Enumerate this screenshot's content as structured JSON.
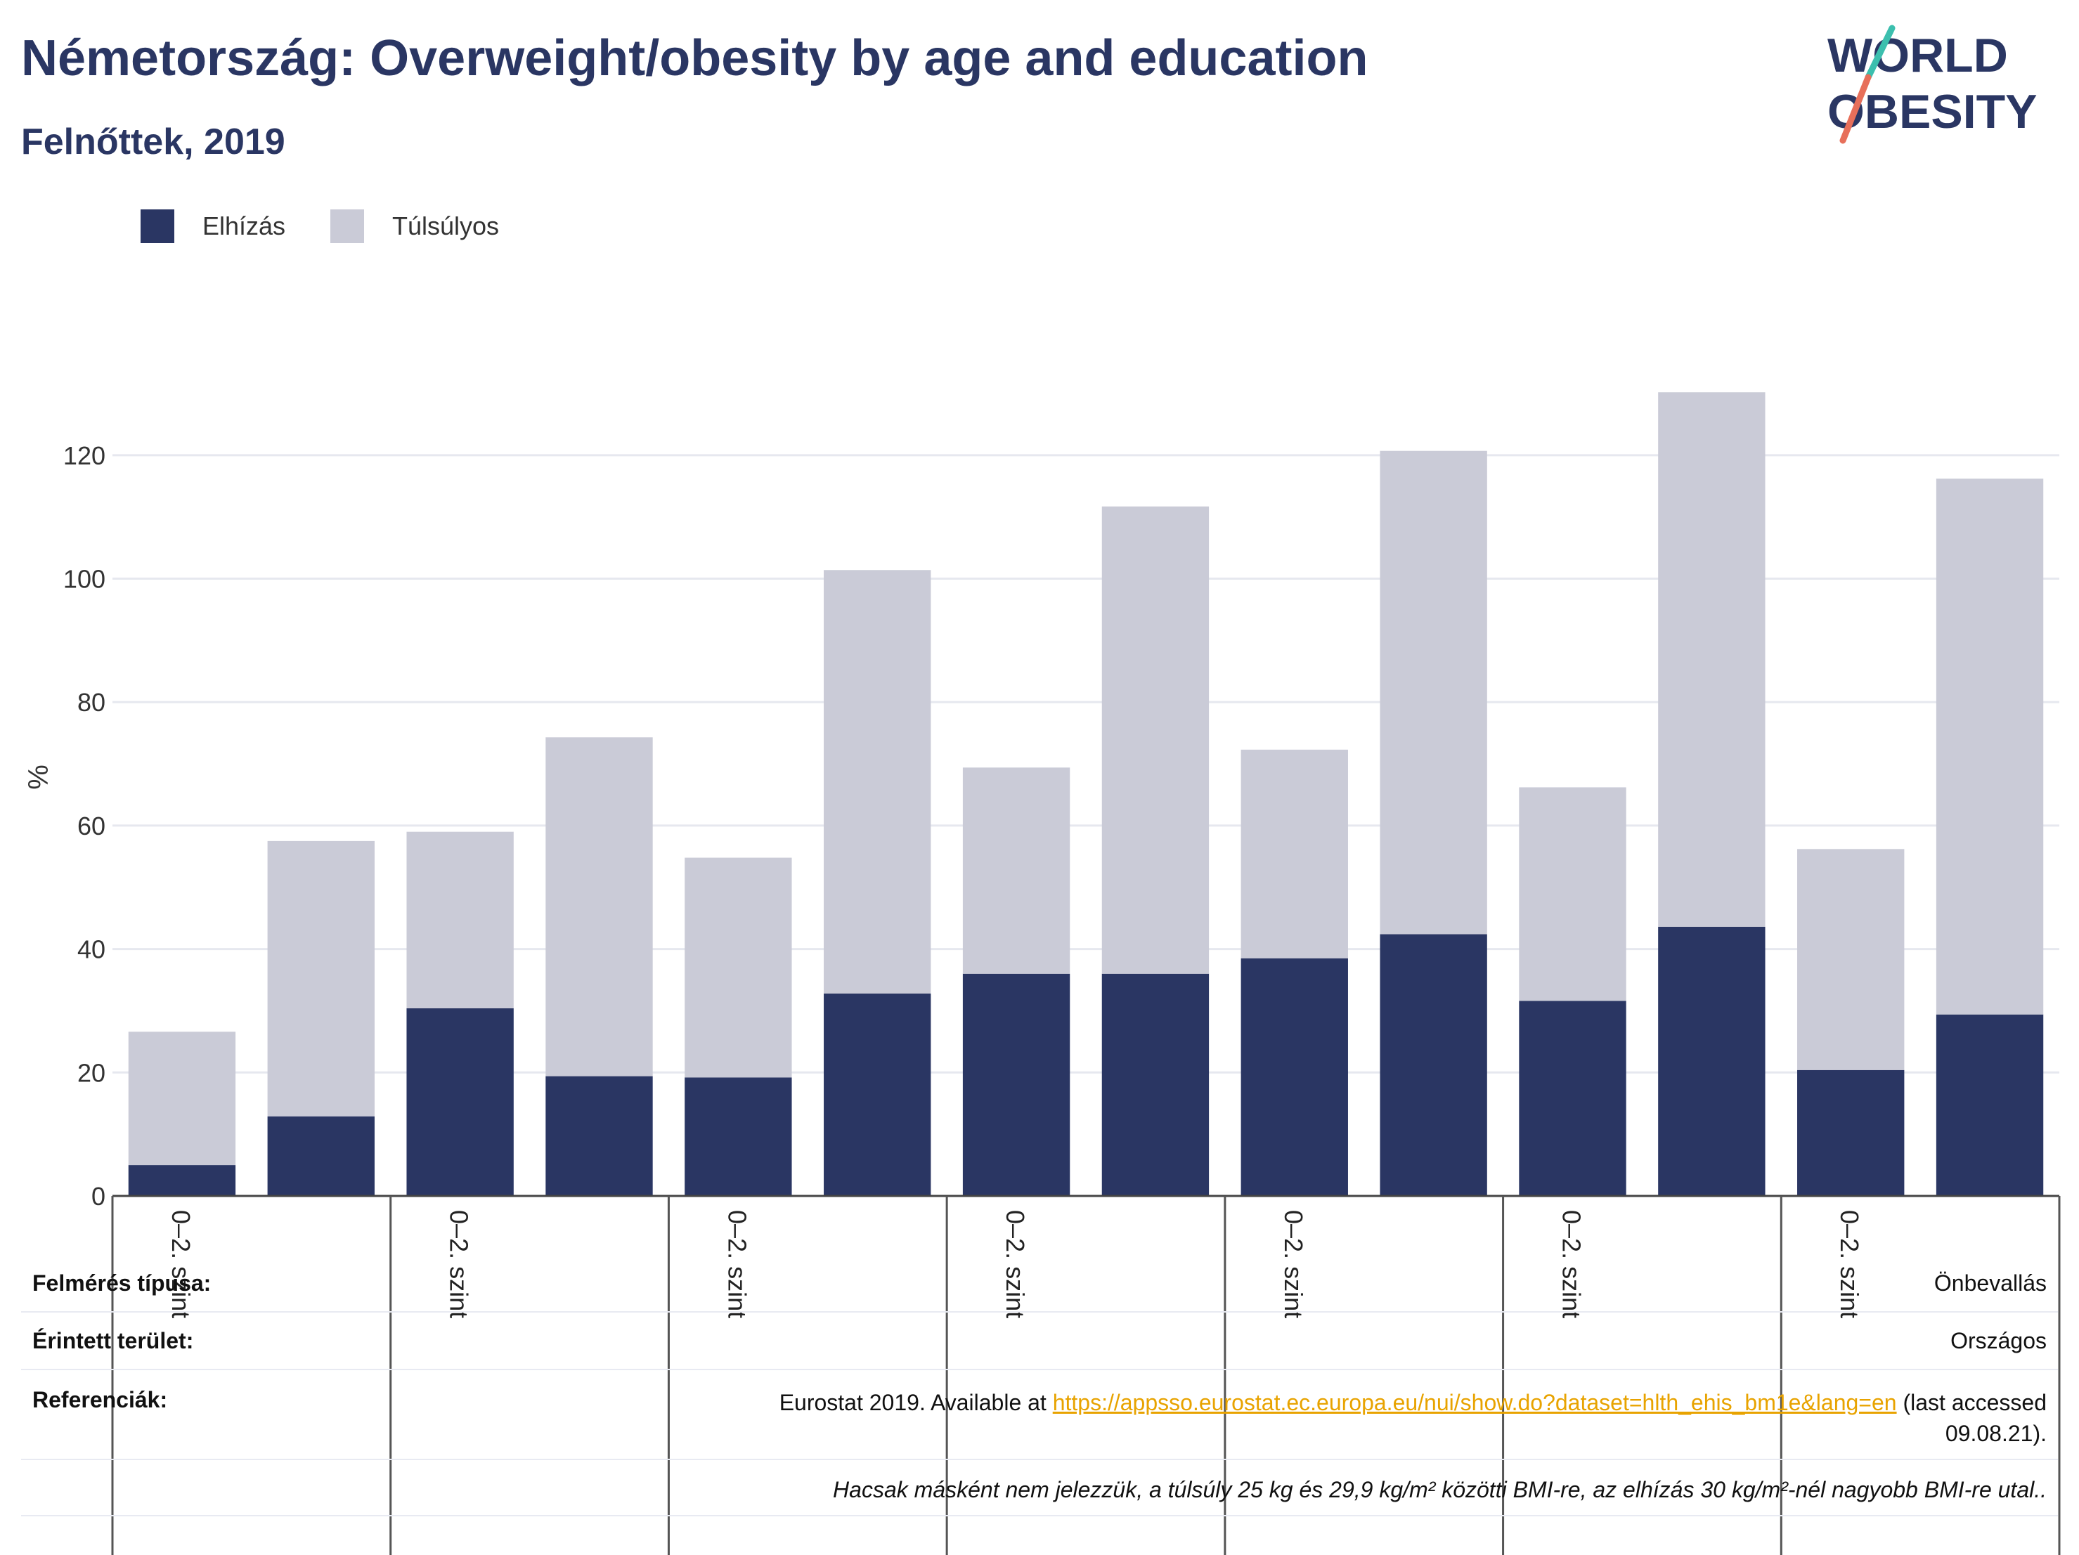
{
  "title": "Németország: Overweight/obesity by age and education",
  "subtitle": "Felnőttek, 2019",
  "logo": {
    "line1": "WORLD",
    "line2": "OBESITY"
  },
  "colors": {
    "obesity": "#2a3663",
    "overweight": "#cacbd7",
    "title": "#2a3663",
    "link": "#e8a300",
    "grid": "#e6e8ef"
  },
  "chart_data": {
    "type": "bar",
    "stacked": true,
    "ylabel": "%",
    "ylim": [
      0,
      130
    ],
    "yticks": [
      0,
      20,
      40,
      60,
      80,
      100,
      120
    ],
    "grid": true,
    "legend_placement": "top-left",
    "group_label": "0–2. szint",
    "categories": [
      "",
      "",
      "",
      "",
      "",
      "",
      "",
      "",
      "",
      "",
      "",
      "",
      "",
      ""
    ],
    "series": [
      {
        "name": "Elhízás",
        "color": "#2a3663",
        "values": [
          5.0,
          12.9,
          30.4,
          19.4,
          19.2,
          32.8,
          36.0,
          36.0,
          38.5,
          42.4,
          31.6,
          43.6,
          20.4,
          29.4
        ]
      },
      {
        "name": "Túlsúlyos",
        "color": "#cacbd7",
        "values": [
          21.6,
          44.6,
          28.6,
          54.9,
          35.6,
          68.6,
          33.4,
          75.7,
          33.8,
          78.3,
          34.6,
          86.6,
          35.8,
          86.8
        ]
      }
    ]
  },
  "meta": {
    "survey_label": "Felmérés típusa:",
    "survey_value": "Önbevallás",
    "area_label": "Érintett terület:",
    "area_value": "Országos",
    "ref_label": "Referenciák:",
    "ref_prefix": "Eurostat 2019. Available at ",
    "ref_link": "https://appsso.eurostat.ec.europa.eu/nui/show.do?dataset=hlth_ehis_bm1e&lang=en",
    "ref_suffix": " (last accessed",
    "ref_date": "09.08.21).",
    "note": "Hacsak másként nem jelezzük, a túlsúly 25 kg és 29,9 kg/m² közötti BMI-re, az elhízás 30 kg/m²-nél nagyobb BMI-re utal.."
  }
}
